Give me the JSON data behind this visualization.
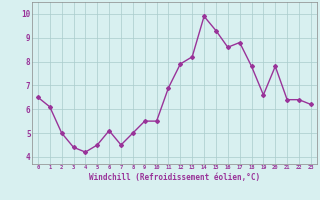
{
  "x": [
    0,
    1,
    2,
    3,
    4,
    5,
    6,
    7,
    8,
    9,
    10,
    11,
    12,
    13,
    14,
    15,
    16,
    17,
    18,
    19,
    20,
    21,
    22,
    23
  ],
  "y": [
    6.5,
    6.1,
    5.0,
    4.4,
    4.2,
    4.5,
    5.1,
    4.5,
    5.0,
    5.5,
    5.5,
    6.9,
    7.9,
    8.2,
    9.9,
    9.3,
    8.6,
    8.8,
    7.8,
    6.6,
    7.8,
    6.4,
    6.4,
    6.2
  ],
  "line_color": "#993399",
  "marker": "D",
  "marker_size": 2,
  "line_width": 1.0,
  "bg_color": "#d8f0f0",
  "grid_color": "#aacccc",
  "xlabel": "Windchill (Refroidissement éolien,°C)",
  "xlabel_color": "#993399",
  "tick_color": "#993399",
  "ylabel_ticks": [
    4,
    5,
    6,
    7,
    8,
    9,
    10
  ],
  "xlim": [
    -0.5,
    23.5
  ],
  "ylim": [
    3.7,
    10.5
  ],
  "xtick_labels": [
    "0",
    "1",
    "2",
    "3",
    "4",
    "5",
    "6",
    "7",
    "8",
    "9",
    "10",
    "11",
    "12",
    "13",
    "14",
    "15",
    "16",
    "17",
    "18",
    "19",
    "20",
    "21",
    "22",
    "23"
  ]
}
